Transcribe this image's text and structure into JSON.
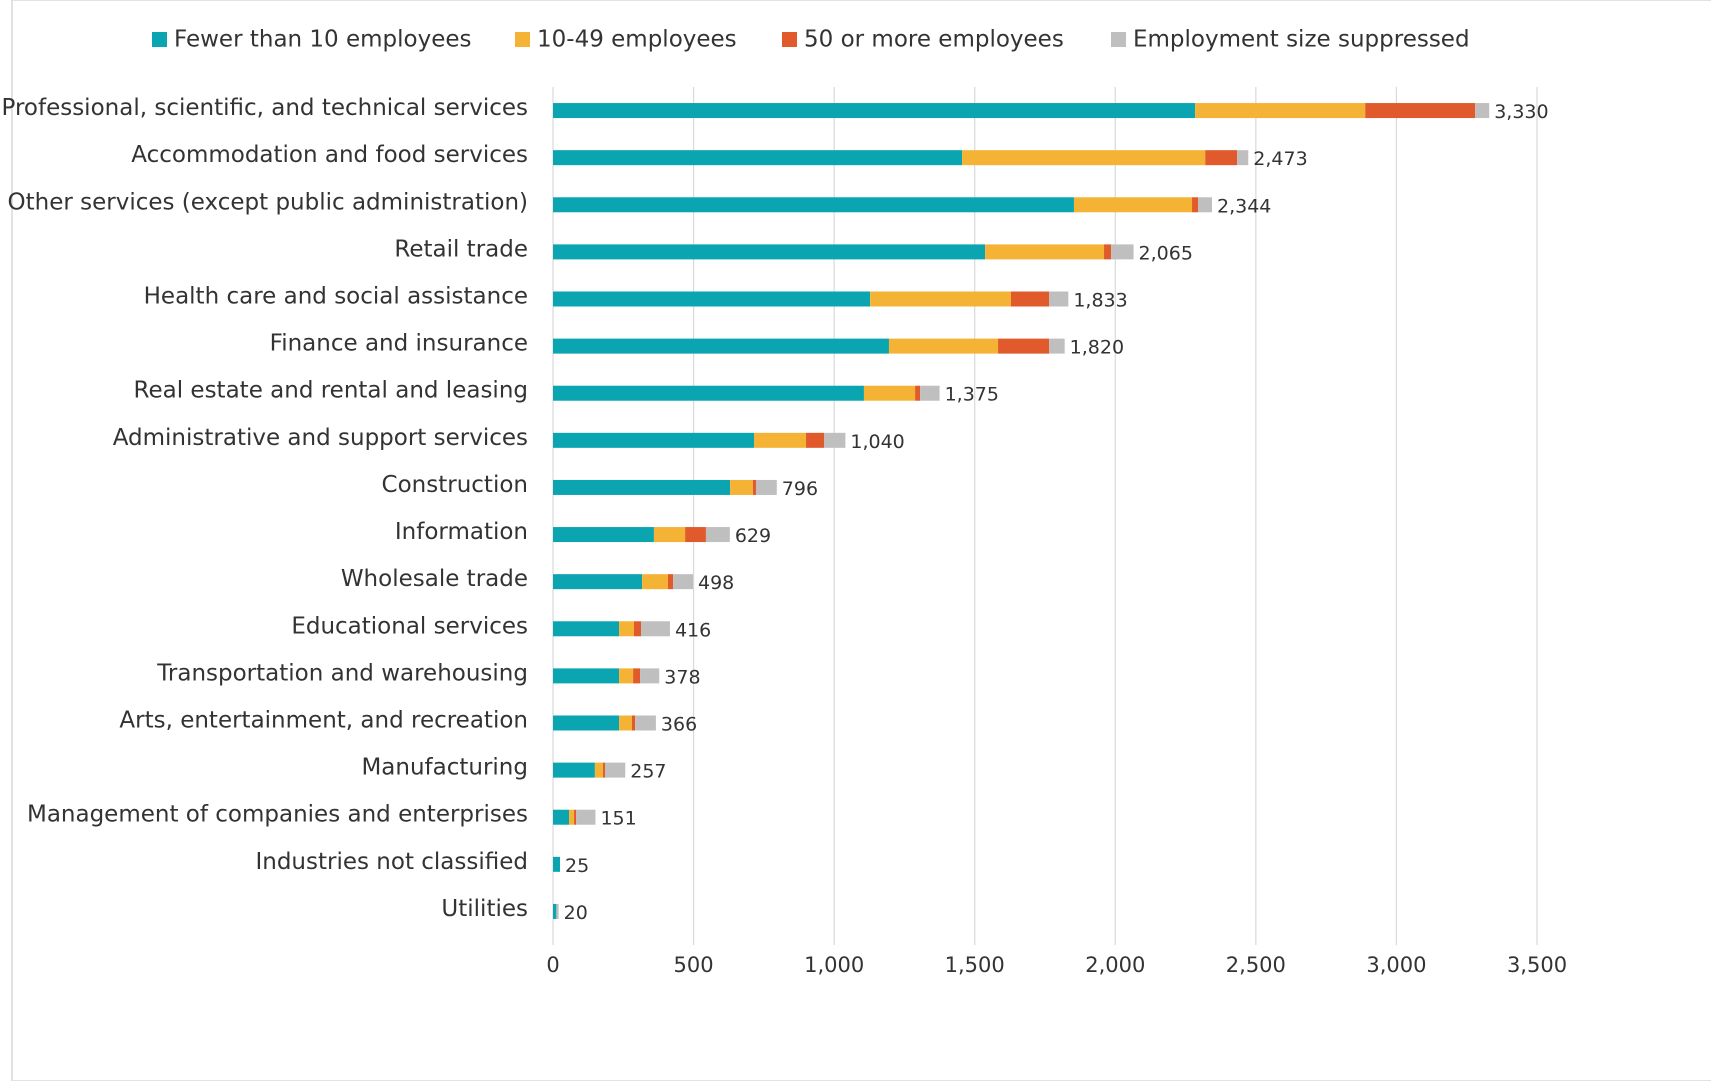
{
  "chart_data": {
    "type": "stacked-bar-horizontal",
    "categories": [
      "Professional, scientific, and technical services",
      "Accommodation and food services",
      "Other services (except public administration)",
      "Retail trade",
      "Health care and social assistance",
      "Finance and insurance",
      "Real estate and rental and leasing",
      "Administrative and support services",
      "Construction",
      "Information",
      "Wholesale trade",
      "Educational services",
      "Transportation and warehousing",
      "Arts, entertainment, and recreation",
      "Manufacturing",
      "Management of companies and enterprises",
      "Industries not classified",
      "Utilities"
    ],
    "series": [
      {
        "name": "Fewer than 10 employees",
        "color": "#0aa5b0",
        "values": [
          2284,
          1455,
          1853,
          1537,
          1128,
          1195,
          1106,
          715,
          630,
          359,
          317,
          235,
          235,
          235,
          149,
          57,
          25,
          12
        ]
      },
      {
        "name": "10-49 employees",
        "color": "#f5b335",
        "values": [
          605,
          865,
          420,
          423,
          501,
          388,
          182,
          185,
          81,
          111,
          92,
          53,
          50,
          46,
          29,
          18,
          0,
          0
        ]
      },
      {
        "name": "50 or more employees",
        "color": "#e05a2b",
        "values": [
          391,
          113,
          22,
          25,
          136,
          182,
          18,
          64,
          11,
          74,
          18,
          25,
          25,
          11,
          7,
          7,
          0,
          0
        ]
      },
      {
        "name": "Employment size suppressed",
        "color": "#bfbfbf",
        "values": [
          50,
          40,
          49,
          80,
          68,
          55,
          69,
          76,
          74,
          85,
          71,
          103,
          68,
          74,
          72,
          69,
          0,
          8
        ]
      }
    ],
    "totals": [
      3330,
      2473,
      2344,
      2065,
      1833,
      1820,
      1375,
      1040,
      796,
      629,
      498,
      416,
      378,
      366,
      257,
      151,
      25,
      20
    ],
    "total_labels": [
      "3,330",
      "2,473",
      "2,344",
      "2,065",
      "1,833",
      "1,820",
      "1,375",
      "1,040",
      "796",
      "629",
      "498",
      "416",
      "378",
      "366",
      "257",
      "151",
      "25",
      "20"
    ],
    "xlim": [
      0,
      3500
    ],
    "xticks": [
      0,
      500,
      {
        "value": 1000,
        "label": "1,000"
      },
      {
        "value": 1500,
        "label": "1,500"
      },
      {
        "value": 2000,
        "label": "2,000"
      },
      {
        "value": 2500,
        "label": "2,500"
      },
      {
        "value": 3000,
        "label": "3,000"
      },
      {
        "value": 3500,
        "label": "3,500"
      }
    ],
    "grid": true,
    "legend": "top"
  }
}
